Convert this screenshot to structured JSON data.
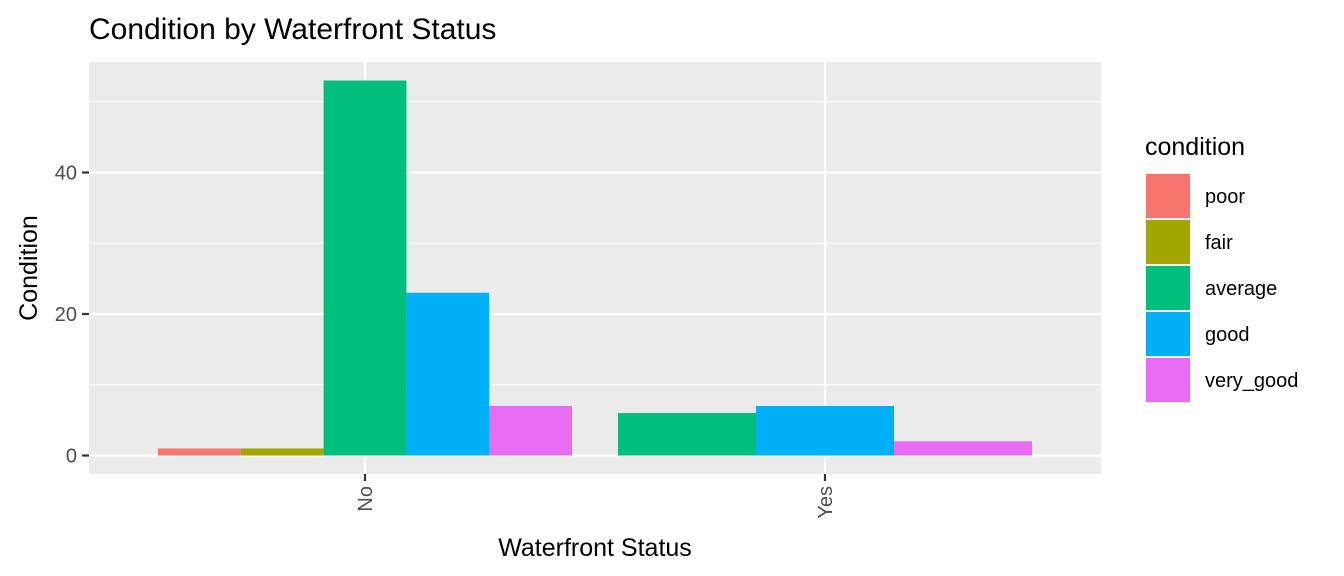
{
  "chart_data": {
    "type": "bar",
    "title": "Condition by Waterfront Status",
    "xlabel": "Waterfront Status",
    "ylabel": "Condition",
    "categories": [
      "No",
      "Yes"
    ],
    "ylim": [
      0,
      56.2
    ],
    "yticks": [
      0,
      20,
      40
    ],
    "y_tick_labels": [
      "0",
      "20",
      "40"
    ],
    "grid": true,
    "legend_position": "right",
    "legend_title": "condition",
    "bar_position": "dodge",
    "series": [
      {
        "name": "poor",
        "color": "#F8766D",
        "values": [
          1,
          null
        ]
      },
      {
        "name": "fair",
        "color": "#A3A500",
        "values": [
          1,
          null
        ]
      },
      {
        "name": "average",
        "color": "#00BF7D",
        "values": [
          53,
          6
        ]
      },
      {
        "name": "good",
        "color": "#00B0F6",
        "values": [
          23,
          7
        ]
      },
      {
        "name": "very_good",
        "color": "#E76BF3",
        "values": [
          7,
          2
        ]
      }
    ]
  }
}
